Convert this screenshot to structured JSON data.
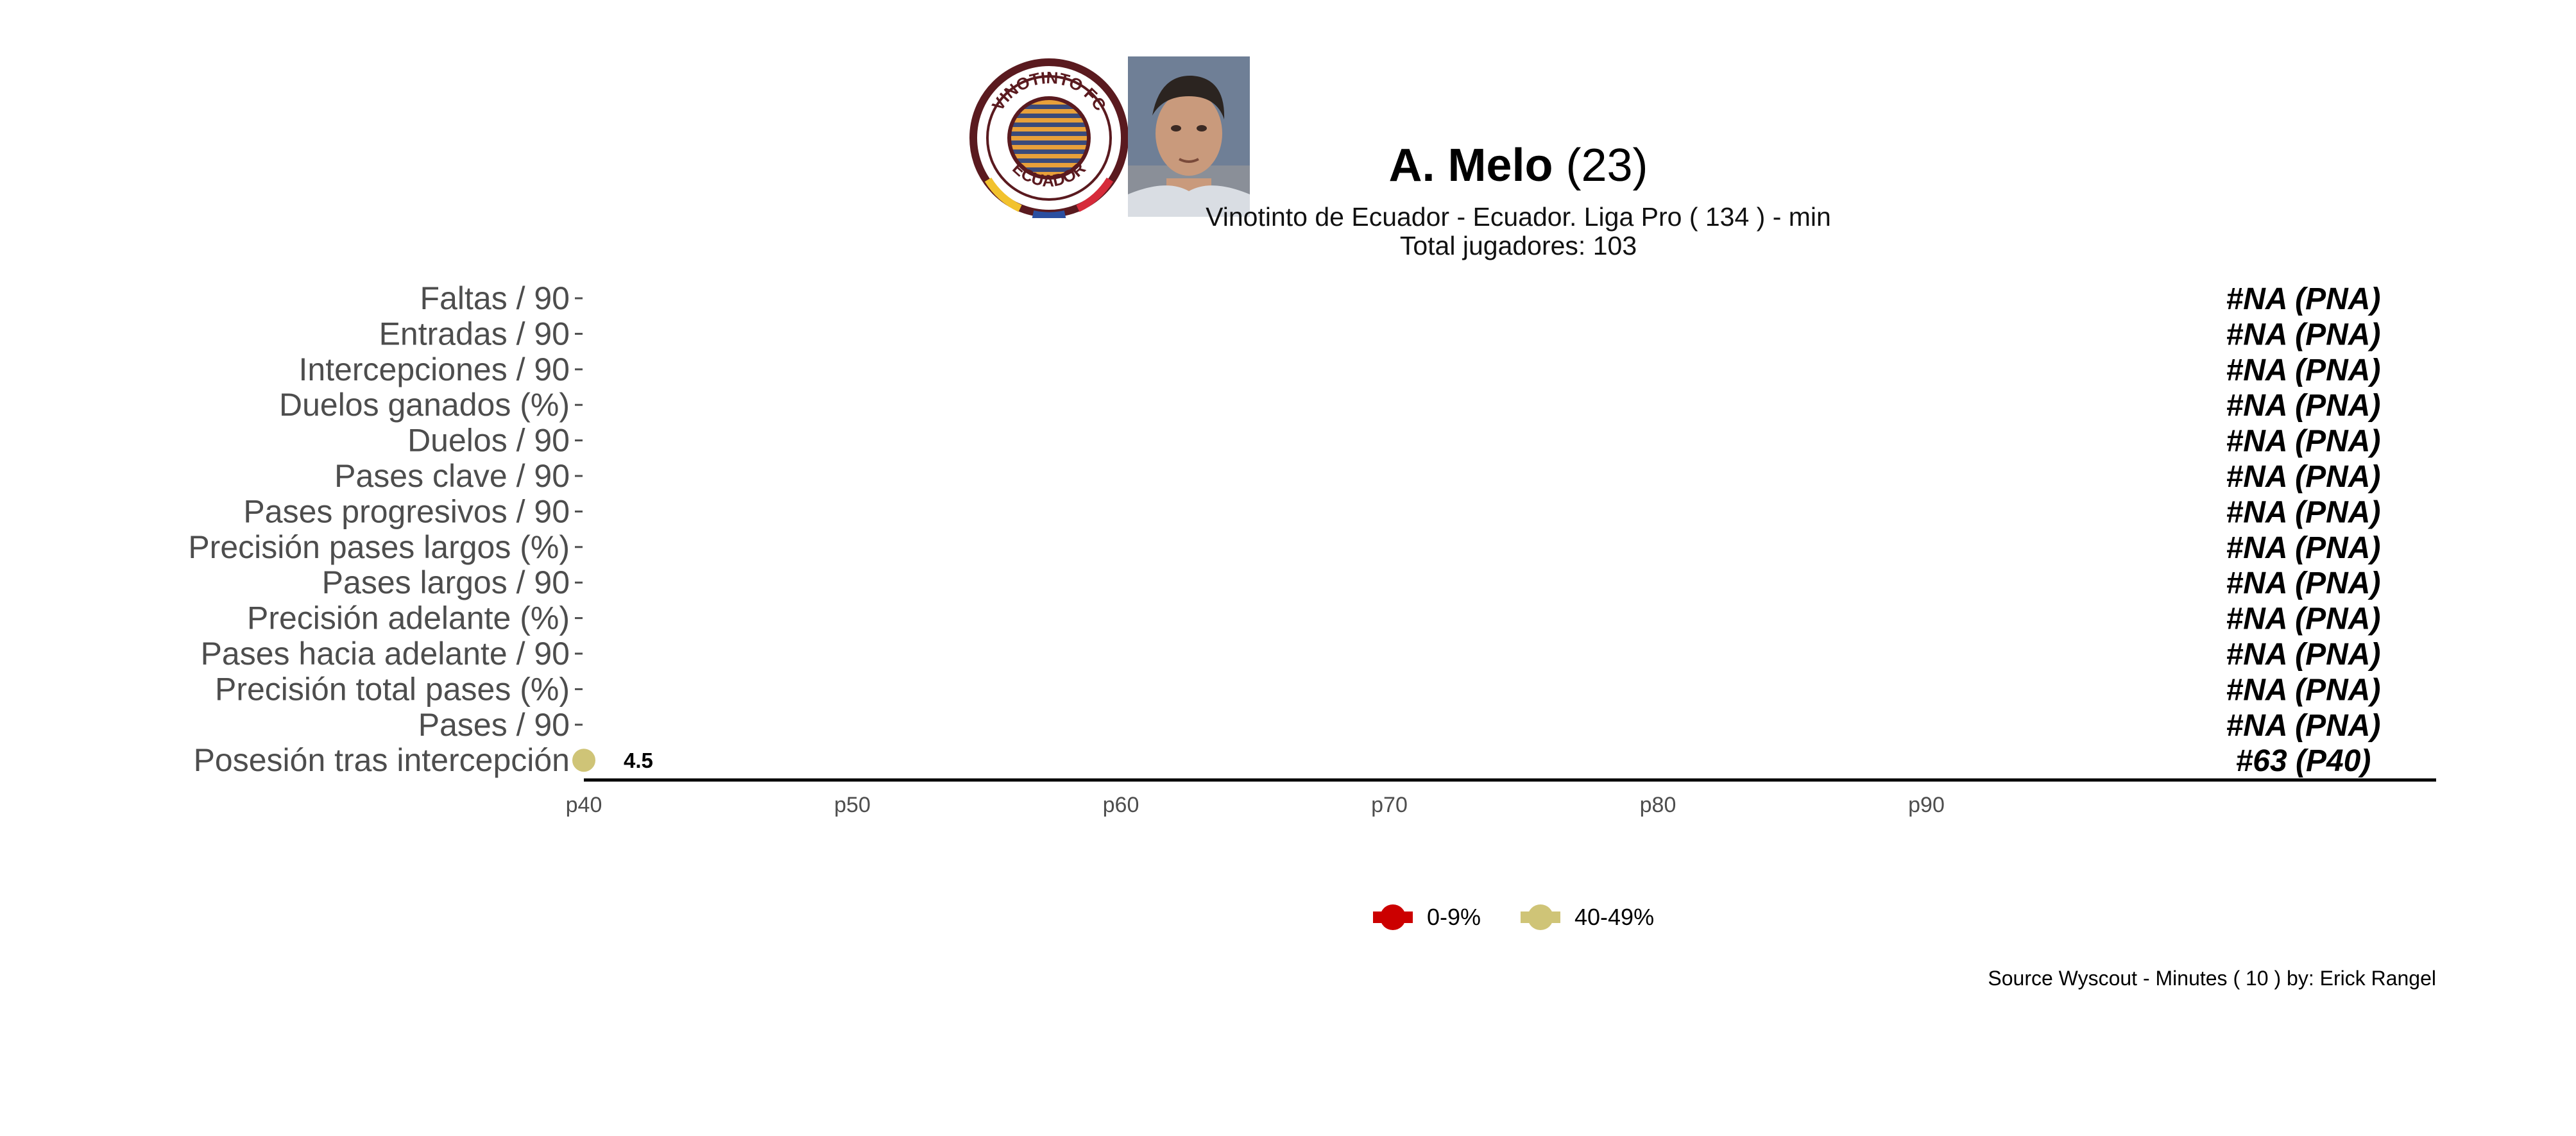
{
  "header": {
    "player_name": "A. Melo",
    "player_age": "(23)",
    "subtitle": "Vinotinto de Ecuador  -  Ecuador. Liga Pro  ( 134 ) - min",
    "total_label": "Total jugadores:  103",
    "club_logo_text": {
      "top": "VINOTINTO FC",
      "bottom": "ECUADOR"
    }
  },
  "chart_data": {
    "type": "bar",
    "orientation": "horizontal",
    "x_axis": {
      "ticks": [
        "p40",
        "p50",
        "p60",
        "p70",
        "p80",
        "p90"
      ],
      "range": [
        40,
        108
      ]
    },
    "categories": [
      "Faltas / 90",
      "Entradas / 90",
      "Intercepciones / 90",
      "Duelos ganados (%)",
      "Duelos / 90",
      "Pases clave / 90",
      "Pases progresivos / 90",
      "Precisión pases largos (%)",
      "Pases largos / 90",
      "Precisión adelante (%)",
      "Pases hacia adelante / 90",
      "Precisión total pases (%)",
      "Pases / 90",
      "Posesión tras intercepción"
    ],
    "rows": [
      {
        "percentile": null,
        "value_label": "",
        "rank_label": "#NA (PNA)"
      },
      {
        "percentile": null,
        "value_label": "",
        "rank_label": "#NA (PNA)"
      },
      {
        "percentile": null,
        "value_label": "",
        "rank_label": "#NA (PNA)"
      },
      {
        "percentile": null,
        "value_label": "",
        "rank_label": "#NA (PNA)"
      },
      {
        "percentile": null,
        "value_label": "",
        "rank_label": "#NA (PNA)"
      },
      {
        "percentile": null,
        "value_label": "",
        "rank_label": "#NA (PNA)"
      },
      {
        "percentile": null,
        "value_label": "",
        "rank_label": "#NA (PNA)"
      },
      {
        "percentile": null,
        "value_label": "",
        "rank_label": "#NA (PNA)"
      },
      {
        "percentile": null,
        "value_label": "",
        "rank_label": "#NA (PNA)"
      },
      {
        "percentile": null,
        "value_label": "",
        "rank_label": "#NA (PNA)"
      },
      {
        "percentile": null,
        "value_label": "",
        "rank_label": "#NA (PNA)"
      },
      {
        "percentile": null,
        "value_label": "",
        "rank_label": "#NA (PNA)"
      },
      {
        "percentile": null,
        "value_label": "",
        "rank_label": "#NA (PNA)"
      },
      {
        "percentile": 40,
        "value_label": "4.5",
        "rank_label": "#63 (P40)",
        "color": "#cfc477"
      }
    ],
    "legend": {
      "position": "bottom",
      "items": [
        {
          "label": "0-9%",
          "color": "#cc0000"
        },
        {
          "label": "40-49%",
          "color": "#cfc477"
        }
      ]
    },
    "grid": false
  },
  "footer": {
    "source": "Source Wyscout - Minutes ( 10 ) by: Erick Rangel"
  }
}
